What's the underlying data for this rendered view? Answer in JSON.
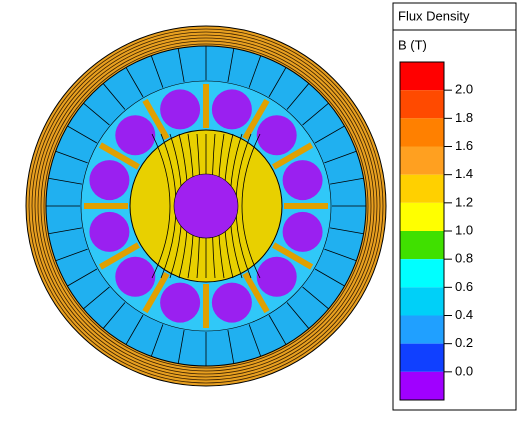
{
  "legend": {
    "title": "Flux Density",
    "unit": "B (T)",
    "ticks": [
      {
        "value": 2.0,
        "label": "2.0"
      },
      {
        "value": 1.8,
        "label": "1.8"
      },
      {
        "value": 1.6,
        "label": "1.6"
      },
      {
        "value": 1.4,
        "label": "1.4"
      },
      {
        "value": 1.2,
        "label": "1.2"
      },
      {
        "value": 1.0,
        "label": "1.0"
      },
      {
        "value": 0.8,
        "label": "0.8"
      },
      {
        "value": 0.6,
        "label": "0.6"
      },
      {
        "value": 0.4,
        "label": "0.4"
      },
      {
        "value": 0.2,
        "label": "0.2"
      },
      {
        "value": 0.0,
        "label": "0.0"
      }
    ],
    "colors": [
      "#ff0000",
      "#ff4a00",
      "#ff8000",
      "#ffa020",
      "#ffd000",
      "#ffff00",
      "#40e000",
      "#00ffff",
      "#00d0f8",
      "#20a0ff",
      "#1040ff",
      "#a000ff"
    ]
  }
}
